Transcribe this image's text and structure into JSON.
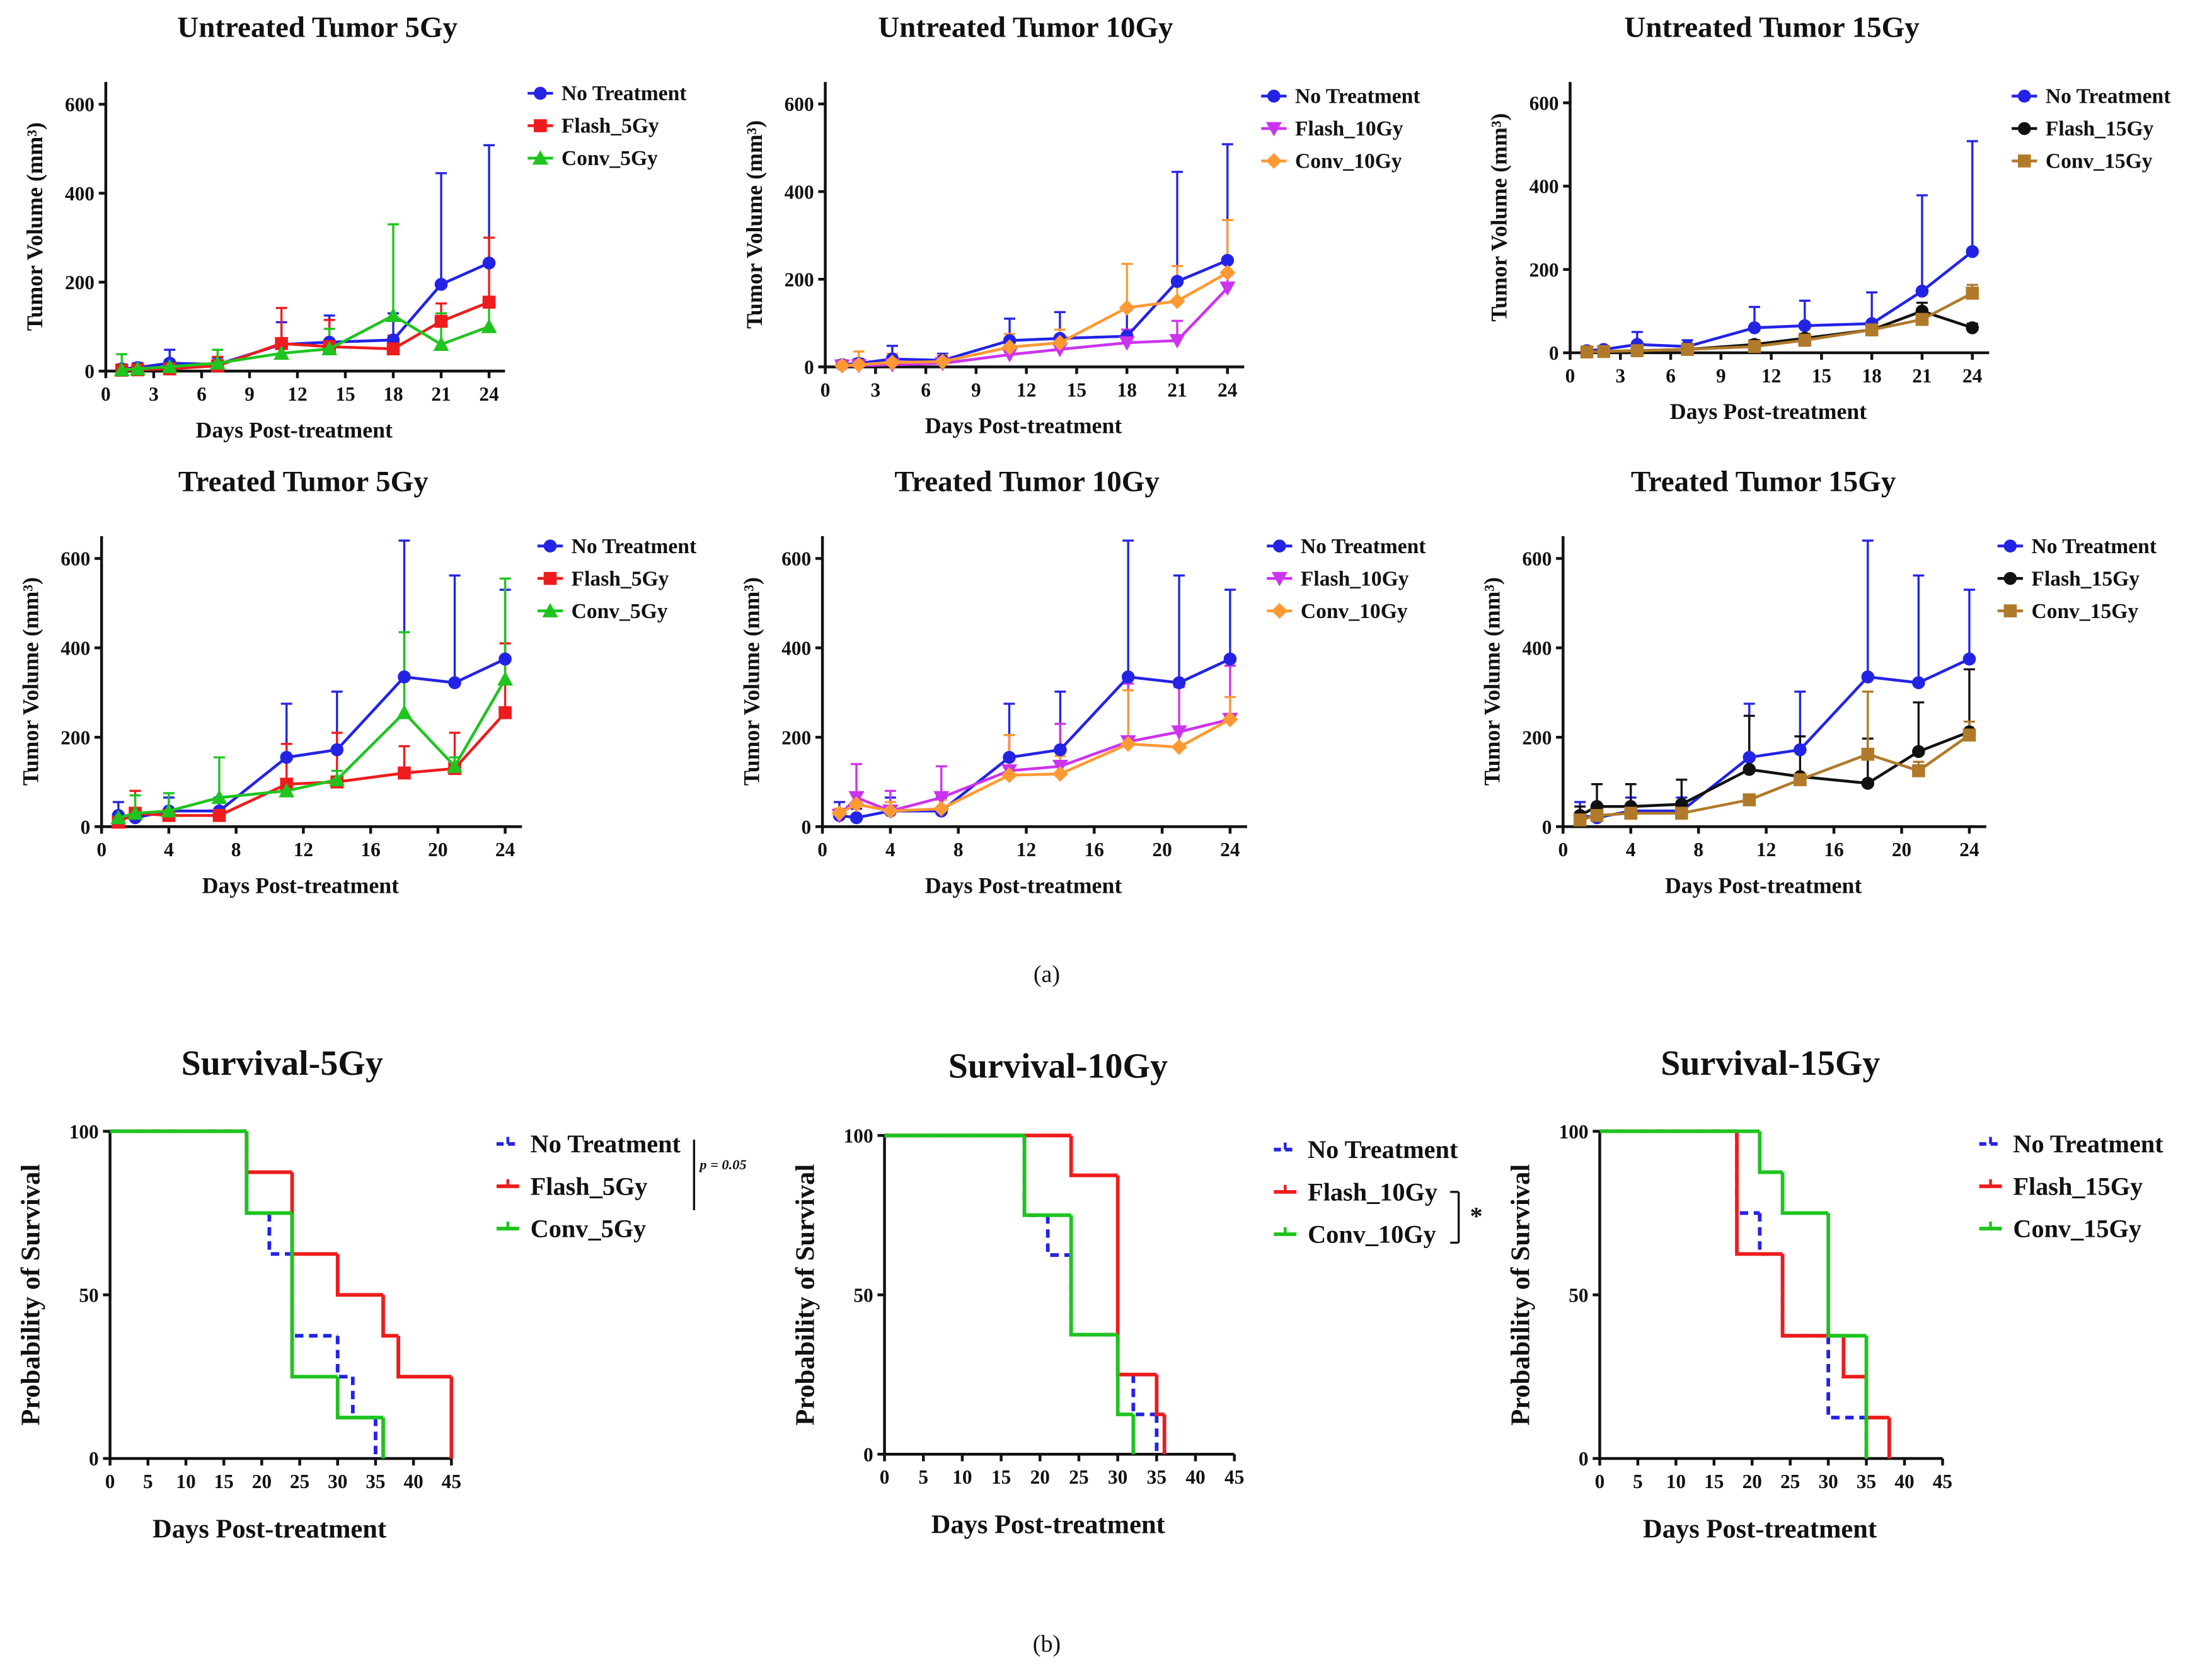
{
  "panel_labels": [
    "(a)",
    "(b)"
  ],
  "chart_data": [
    {
      "type": "line",
      "title": "Untreated Tumor 5Gy",
      "xlabel": "Days Post-treatment",
      "ylabel": "Tumor Volume (mm³)",
      "x": [
        1,
        2,
        4,
        7,
        11,
        14,
        18,
        21,
        24
      ],
      "xlim": [
        0,
        25
      ],
      "xticks": [
        0,
        3,
        6,
        9,
        12,
        15,
        18,
        21,
        24
      ],
      "ylim": [
        0,
        650
      ],
      "yticks": [
        0,
        200,
        400,
        600
      ],
      "series": [
        {
          "name": "No Treatment",
          "color": "#2323e6",
          "marker": "circle",
          "values": [
            5,
            8,
            18,
            15,
            60,
            65,
            70,
            195,
            243
          ],
          "errors": [
            10,
            10,
            30,
            15,
            50,
            60,
            60,
            250,
            265
          ]
        },
        {
          "name": "Flash_5Gy",
          "color": "#ee1c1c",
          "marker": "square",
          "values": [
            2,
            3,
            5,
            12,
            62,
            55,
            50,
            112,
            155
          ],
          "errors": [
            5,
            5,
            10,
            20,
            80,
            60,
            30,
            40,
            145
          ]
        },
        {
          "name": "Conv_5Gy",
          "color": "#1fc41f",
          "marker": "triangle",
          "values": [
            3,
            5,
            10,
            18,
            40,
            50,
            125,
            60,
            100
          ],
          "errors": [
            35,
            10,
            15,
            30,
            30,
            45,
            205,
            70,
            50
          ]
        }
      ]
    },
    {
      "type": "line",
      "title": "Untreated Tumor 10Gy",
      "xlabel": "Days Post-treatment",
      "ylabel": "Tumor Volume (mm³)",
      "x": [
        1,
        2,
        4,
        7,
        11,
        14,
        18,
        21,
        24
      ],
      "xlim": [
        0,
        25
      ],
      "xticks": [
        0,
        3,
        6,
        9,
        12,
        15,
        18,
        21,
        24
      ],
      "ylim": [
        0,
        650
      ],
      "yticks": [
        0,
        200,
        400,
        600
      ],
      "series": [
        {
          "name": "No Treatment",
          "color": "#2323e6",
          "marker": "circle",
          "values": [
            5,
            8,
            18,
            15,
            60,
            65,
            70,
            195,
            243
          ],
          "errors": [
            10,
            10,
            30,
            15,
            50,
            60,
            60,
            250,
            265
          ]
        },
        {
          "name": "Flash_10Gy",
          "color": "#cc33ee",
          "marker": "down-triangle",
          "values": [
            2,
            3,
            5,
            8,
            28,
            40,
            55,
            60,
            180
          ],
          "errors": [
            5,
            5,
            8,
            10,
            20,
            20,
            30,
            45,
            30
          ]
        },
        {
          "name": "Conv_10Gy",
          "color": "#ff9933",
          "marker": "diamond",
          "values": [
            3,
            5,
            10,
            12,
            45,
            55,
            135,
            150,
            215
          ],
          "errors": [
            10,
            30,
            20,
            15,
            30,
            30,
            100,
            80,
            120
          ]
        }
      ]
    },
    {
      "type": "line",
      "title": "Untreated Tumor 15Gy",
      "xlabel": "Days Post-treatment",
      "ylabel": "Tumor Volume (mm³)",
      "x": [
        1,
        2,
        4,
        7,
        11,
        14,
        18,
        21,
        24
      ],
      "xlim": [
        0,
        25
      ],
      "xticks": [
        0,
        3,
        6,
        9,
        12,
        15,
        18,
        21,
        24
      ],
      "ylim": [
        0,
        650
      ],
      "yticks": [
        0,
        200,
        400,
        600
      ],
      "series": [
        {
          "name": "No Treatment",
          "color": "#2323e6",
          "marker": "circle",
          "values": [
            5,
            8,
            20,
            15,
            60,
            65,
            70,
            148,
            243
          ],
          "errors": [
            5,
            5,
            30,
            15,
            50,
            60,
            75,
            230,
            265
          ]
        },
        {
          "name": "Flash_15Gy",
          "color": "#111111",
          "marker": "circle",
          "values": [
            2,
            3,
            5,
            8,
            20,
            35,
            55,
            100,
            60
          ],
          "errors": [
            3,
            3,
            5,
            10,
            10,
            10,
            15,
            20,
            10
          ]
        },
        {
          "name": "Conv_15Gy",
          "color": "#b07a2a",
          "marker": "square",
          "values": [
            2,
            3,
            5,
            8,
            15,
            30,
            55,
            80,
            143
          ],
          "errors": [
            3,
            3,
            5,
            5,
            10,
            10,
            10,
            15,
            20
          ]
        }
      ]
    },
    {
      "type": "line",
      "title": "Treated Tumor 5Gy",
      "xlabel": "Days Post-treatment",
      "ylabel": "Tumor Volume (mm³)",
      "x": [
        1,
        2,
        4,
        7,
        11,
        14,
        18,
        21,
        24
      ],
      "xlim": [
        0,
        25
      ],
      "xticks": [
        0,
        4,
        8,
        12,
        16,
        20,
        24
      ],
      "ylim": [
        0,
        650
      ],
      "yticks": [
        0,
        200,
        400,
        600
      ],
      "series": [
        {
          "name": "No Treatment",
          "color": "#2323e6",
          "marker": "circle",
          "values": [
            25,
            20,
            35,
            35,
            155,
            172,
            335,
            322,
            375
          ],
          "errors": [
            30,
            20,
            30,
            30,
            120,
            130,
            305,
            240,
            155
          ]
        },
        {
          "name": "Flash_5Gy",
          "color": "#ee1c1c",
          "marker": "square",
          "values": [
            10,
            30,
            25,
            25,
            95,
            100,
            120,
            130,
            255
          ],
          "errors": [
            10,
            50,
            10,
            10,
            90,
            110,
            60,
            80,
            155
          ]
        },
        {
          "name": "Conv_5Gy",
          "color": "#1fc41f",
          "marker": "triangle",
          "values": [
            20,
            30,
            35,
            65,
            80,
            105,
            255,
            135,
            330
          ],
          "errors": [
            10,
            40,
            40,
            90,
            20,
            20,
            180,
            20,
            225
          ]
        }
      ]
    },
    {
      "type": "line",
      "title": "Treated Tumor 10Gy",
      "xlabel": "Days Post-treatment",
      "ylabel": "Tumor Volume (mm³)",
      "x": [
        1,
        2,
        4,
        7,
        11,
        14,
        18,
        21,
        24
      ],
      "xlim": [
        0,
        25
      ],
      "xticks": [
        0,
        4,
        8,
        12,
        16,
        20,
        24
      ],
      "ylim": [
        0,
        650
      ],
      "yticks": [
        0,
        200,
        400,
        600
      ],
      "series": [
        {
          "name": "No Treatment",
          "color": "#2323e6",
          "marker": "circle",
          "values": [
            25,
            20,
            35,
            35,
            155,
            172,
            335,
            322,
            375
          ],
          "errors": [
            30,
            20,
            30,
            30,
            120,
            130,
            305,
            240,
            155
          ]
        },
        {
          "name": "Flash_10Gy",
          "color": "#cc33ee",
          "marker": "down-triangle",
          "values": [
            25,
            65,
            35,
            65,
            125,
            135,
            190,
            212,
            240
          ],
          "errors": [
            10,
            75,
            45,
            70,
            80,
            95,
            130,
            100,
            120
          ]
        },
        {
          "name": "Conv_10Gy",
          "color": "#ff9933",
          "marker": "diamond",
          "values": [
            30,
            50,
            35,
            40,
            115,
            118,
            185,
            178,
            240
          ],
          "errors": [
            10,
            20,
            20,
            20,
            90,
            40,
            120,
            40,
            50
          ]
        }
      ]
    },
    {
      "type": "line",
      "title": "Treated Tumor 15Gy",
      "xlabel": "Days Post-treatment",
      "ylabel": "Tumor Volume (mm³)",
      "x": [
        1,
        2,
        4,
        7,
        11,
        14,
        18,
        21,
        24
      ],
      "xlim": [
        0,
        25
      ],
      "xticks": [
        0,
        4,
        8,
        12,
        16,
        20,
        24
      ],
      "ylim": [
        0,
        650
      ],
      "yticks": [
        0,
        200,
        400,
        600
      ],
      "series": [
        {
          "name": "No Treatment",
          "color": "#2323e6",
          "marker": "circle",
          "values": [
            25,
            20,
            35,
            35,
            155,
            172,
            335,
            322,
            375
          ],
          "errors": [
            30,
            20,
            30,
            30,
            120,
            130,
            305,
            240,
            155
          ]
        },
        {
          "name": "Flash_15Gy",
          "color": "#111111",
          "marker": "circle",
          "values": [
            25,
            45,
            45,
            50,
            128,
            112,
            97,
            168,
            212
          ],
          "errors": [
            20,
            50,
            50,
            55,
            120,
            90,
            100,
            110,
            140
          ]
        },
        {
          "name": "Conv_15Gy",
          "color": "#b07a2a",
          "marker": "square",
          "values": [
            15,
            25,
            30,
            30,
            60,
            105,
            162,
            125,
            205
          ],
          "errors": [
            10,
            10,
            10,
            10,
            10,
            10,
            140,
            20,
            30
          ]
        }
      ]
    },
    {
      "type": "survival",
      "title": "Survival-5Gy",
      "xlabel": "Days Post-treatment",
      "ylabel": "Probability of Survival",
      "annotation": "p = 0.05",
      "xlim": [
        0,
        45
      ],
      "xticks": [
        0,
        5,
        10,
        15,
        20,
        25,
        30,
        35,
        40,
        45
      ],
      "ylim": [
        0,
        100
      ],
      "yticks": [
        0,
        50,
        100
      ],
      "series": [
        {
          "name": "No Treatment",
          "color": "#2323e6",
          "dash": true,
          "x": [
            0,
            18,
            21,
            24,
            30,
            32,
            35
          ],
          "values": [
            100,
            75,
            62.5,
            37.5,
            25,
            12.5,
            0
          ]
        },
        {
          "name": "Flash_5Gy",
          "color": "#ee1c1c",
          "dash": false,
          "x": [
            0,
            18,
            24,
            30,
            36,
            38,
            45
          ],
          "values": [
            100,
            87.5,
            62.5,
            50,
            37.5,
            25,
            0
          ]
        },
        {
          "name": "Conv_5Gy",
          "color": "#1fc41f",
          "dash": false,
          "x": [
            0,
            18,
            24,
            30,
            36
          ],
          "values": [
            100,
            75,
            25,
            12.5,
            0
          ]
        }
      ]
    },
    {
      "type": "survival",
      "title": "Survival-10Gy",
      "xlabel": "Days Post-treatment",
      "ylabel": "Probability of Survival",
      "annotation": "*",
      "xlim": [
        0,
        45
      ],
      "xticks": [
        0,
        5,
        10,
        15,
        20,
        25,
        30,
        35,
        40,
        45
      ],
      "ylim": [
        0,
        100
      ],
      "yticks": [
        0,
        50,
        100
      ],
      "series": [
        {
          "name": "No Treatment",
          "color": "#2323e6",
          "dash": true,
          "x": [
            0,
            18,
            21,
            24,
            30,
            32,
            35
          ],
          "values": [
            100,
            75,
            62.5,
            37.5,
            25,
            12.5,
            0
          ]
        },
        {
          "name": "Flash_10Gy",
          "color": "#ee1c1c",
          "dash": false,
          "x": [
            0,
            24,
            30,
            35,
            36
          ],
          "values": [
            100,
            87.5,
            25,
            12.5,
            0
          ]
        },
        {
          "name": "Conv_10Gy",
          "color": "#1fc41f",
          "dash": false,
          "x": [
            0,
            18,
            24,
            30,
            32
          ],
          "values": [
            100,
            75,
            37.5,
            12.5,
            0
          ]
        }
      ]
    },
    {
      "type": "survival",
      "title": "Survival-15Gy",
      "xlabel": "Days Post-treatment",
      "ylabel": "Probability of Survival",
      "xlim": [
        0,
        45
      ],
      "xticks": [
        0,
        5,
        10,
        15,
        20,
        25,
        30,
        35,
        40,
        45
      ],
      "ylim": [
        0,
        100
      ],
      "yticks": [
        0,
        50,
        100
      ],
      "series": [
        {
          "name": "No Treatment",
          "color": "#2323e6",
          "dash": true,
          "x": [
            0,
            18,
            21,
            24,
            30,
            35
          ],
          "values": [
            100,
            75,
            62.5,
            37.5,
            12.5,
            0
          ]
        },
        {
          "name": "Flash_15Gy",
          "color": "#ee1c1c",
          "dash": false,
          "x": [
            0,
            18,
            24,
            32,
            35,
            38
          ],
          "values": [
            100,
            62.5,
            37.5,
            25,
            12.5,
            0
          ]
        },
        {
          "name": "Conv_15Gy",
          "color": "#1fc41f",
          "dash": false,
          "x": [
            0,
            21,
            24,
            30,
            35
          ],
          "values": [
            100,
            87.5,
            75,
            37.5,
            0
          ]
        }
      ]
    }
  ]
}
